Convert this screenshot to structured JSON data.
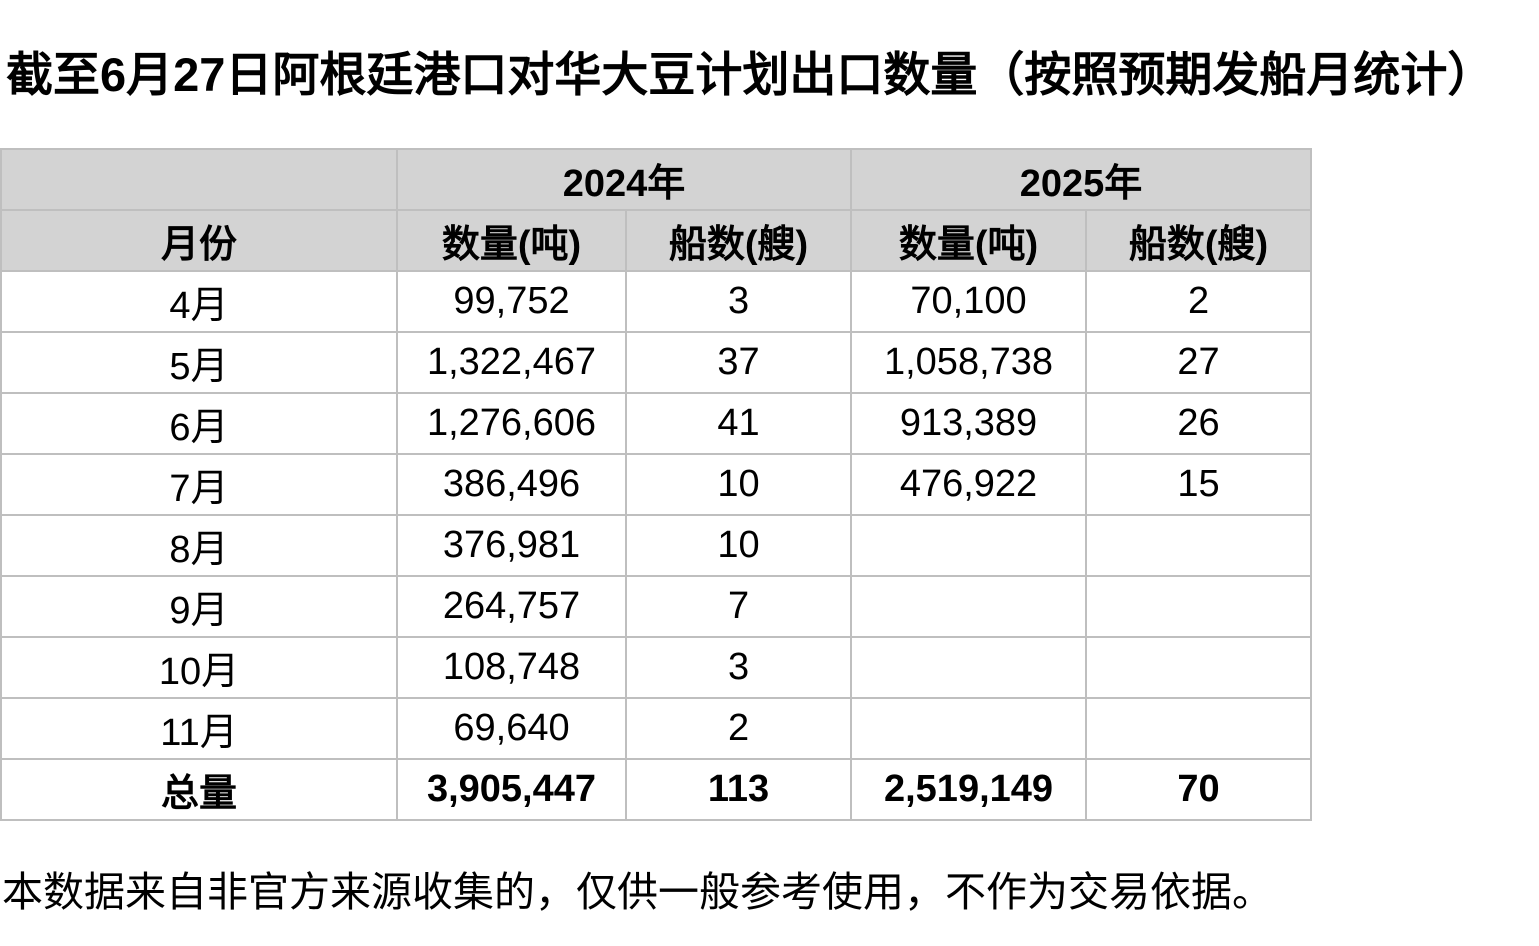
{
  "title": "截至6月27日阿根廷港口对华大豆计划出口数量（按照预期发船月统计）",
  "table": {
    "year_headers": [
      "2024年",
      "2025年"
    ],
    "column_headers": [
      "月份",
      "数量(吨)",
      "船数(艘)",
      "数量(吨)",
      "船数(艘)"
    ],
    "rows": [
      {
        "month": "4月",
        "qty_2024": "99,752",
        "ships_2024": "3",
        "qty_2025": "70,100",
        "ships_2025": "2"
      },
      {
        "month": "5月",
        "qty_2024": "1,322,467",
        "ships_2024": "37",
        "qty_2025": "1,058,738",
        "ships_2025": "27"
      },
      {
        "month": "6月",
        "qty_2024": "1,276,606",
        "ships_2024": "41",
        "qty_2025": "913,389",
        "ships_2025": "26"
      },
      {
        "month": "7月",
        "qty_2024": "386,496",
        "ships_2024": "10",
        "qty_2025": "476,922",
        "ships_2025": "15"
      },
      {
        "month": "8月",
        "qty_2024": "376,981",
        "ships_2024": "10",
        "qty_2025": "",
        "ships_2025": ""
      },
      {
        "month": "9月",
        "qty_2024": "264,757",
        "ships_2024": "7",
        "qty_2025": "",
        "ships_2025": ""
      },
      {
        "month": "10月",
        "qty_2024": "108,748",
        "ships_2024": "3",
        "qty_2025": "",
        "ships_2025": ""
      },
      {
        "month": "11月",
        "qty_2024": "69,640",
        "ships_2024": "2",
        "qty_2025": "",
        "ships_2025": ""
      }
    ],
    "total_row": {
      "label": "总量",
      "qty_2024": "3,905,447",
      "ships_2024": "113",
      "qty_2025": "2,519,149",
      "ships_2025": "70"
    }
  },
  "footer": "本数据来自非官方来源收集的，仅供一般参考使用，不作为交易依据。",
  "colors": {
    "header_bg": "#d3d3d3",
    "border": "#bfbfbf",
    "text": "#000000",
    "background": "#ffffff"
  },
  "chart_data": {
    "type": "table",
    "title": "截至6月27日阿根廷港口对华大豆计划出口数量（按照预期发船月统计）",
    "categories": [
      "4月",
      "5月",
      "6月",
      "7月",
      "8月",
      "9月",
      "10月",
      "11月"
    ],
    "series": [
      {
        "name": "2024年 数量(吨)",
        "values": [
          99752,
          1322467,
          1276606,
          386496,
          376981,
          264757,
          108748,
          69640
        ]
      },
      {
        "name": "2024年 船数(艘)",
        "values": [
          3,
          37,
          41,
          10,
          10,
          7,
          3,
          2
        ]
      },
      {
        "name": "2025年 数量(吨)",
        "values": [
          70100,
          1058738,
          913389,
          476922,
          null,
          null,
          null,
          null
        ]
      },
      {
        "name": "2025年 船数(艘)",
        "values": [
          2,
          27,
          26,
          15,
          null,
          null,
          null,
          null
        ]
      }
    ],
    "totals": {
      "2024_qty": 3905447,
      "2024_ships": 113,
      "2025_qty": 2519149,
      "2025_ships": 70
    }
  }
}
